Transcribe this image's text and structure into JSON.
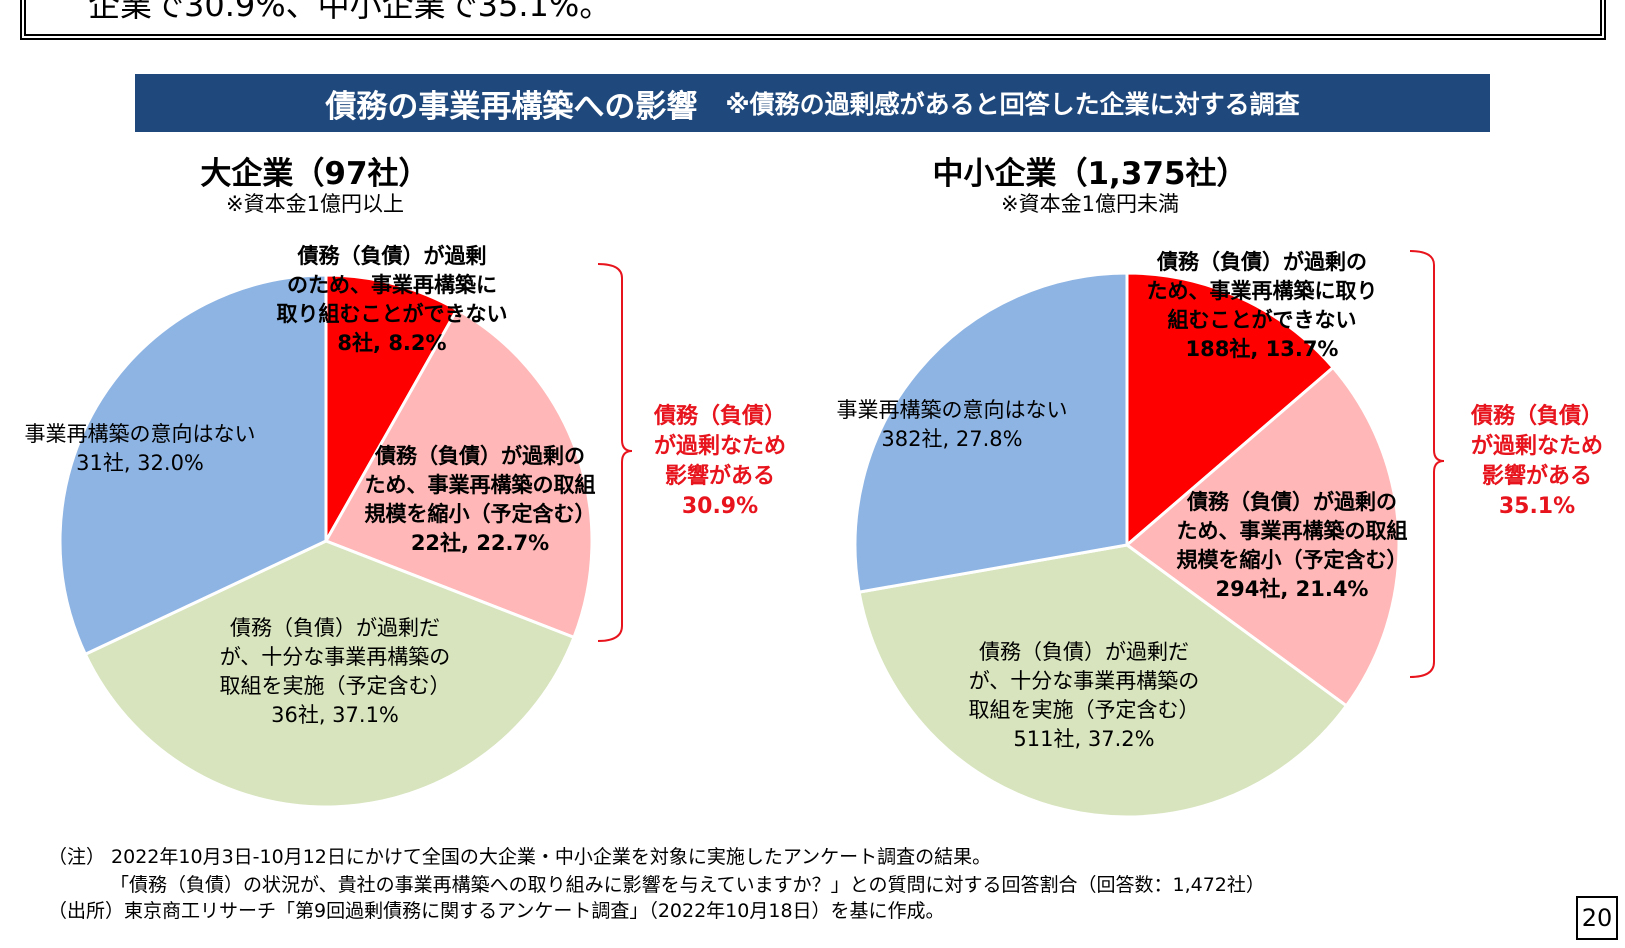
{
  "header": {
    "top_text": "企業で30.9%、中小企業で35.1%。",
    "banner_title": "債務の事業再構築への影響",
    "banner_note": "※債務の過剰感があると回答した企業に対する調査"
  },
  "chart_data": [
    {
      "type": "pie",
      "title": "大企業（97社）",
      "subtitle": "※資本金1億円以上",
      "slices": [
        {
          "label": "債務（負債）が過剰のため、事業再構築に取り組むことができない",
          "count": 8,
          "value": 8.2,
          "color": "#ff0000"
        },
        {
          "label": "債務（負債）が過剰のため、事業再構築の取組規模を縮小（予定含む）",
          "count": 22,
          "value": 22.7,
          "color": "#ffb7b7"
        },
        {
          "label": "債務（負債）が過剰だが、十分な事業再構築の取組を実施（予定含む）",
          "count": 36,
          "value": 37.1,
          "color": "#d7e4bd"
        },
        {
          "label": "事業再構築の意向はない",
          "count": 31,
          "value": 32.0,
          "color": "#8eb4e3"
        }
      ],
      "bracket_label": [
        "債務（負債）",
        "が過剰なため",
        "影響がある",
        "30.9%"
      ]
    },
    {
      "type": "pie",
      "title": "中小企業（1,375社）",
      "subtitle": "※資本金1億円未満",
      "slices": [
        {
          "label": "債務（負債）が過剰のため、事業再構築に取り組むことができない",
          "count": 188,
          "value": 13.7,
          "color": "#ff0000"
        },
        {
          "label": "債務（負債）が過剰のため、事業再構築の取組規模を縮小（予定含む）",
          "count": 294,
          "value": 21.4,
          "color": "#ffb7b7"
        },
        {
          "label": "債務（負債）が過剰だが、十分な事業再構築の取組を実施（予定含む）",
          "count": 511,
          "value": 37.2,
          "color": "#d7e4bd"
        },
        {
          "label": "事業再構築の意向はない",
          "count": 382,
          "value": 27.8,
          "color": "#8eb4e3"
        }
      ],
      "bracket_label": [
        "債務（負債）",
        "が過剰なため",
        "影響がある",
        "35.1%"
      ]
    }
  ],
  "labels": {
    "large": {
      "s0": [
        "債務（負債）が過剰",
        "のため、事業再構築に",
        "取り組むことができない",
        "8社, 8.2%"
      ],
      "s1": [
        "債務（負債）が過剰の",
        "ため、事業再構築の取組",
        "規模を縮小（予定含む）",
        "22社, 22.7%"
      ],
      "s2": [
        "債務（負債）が過剰だ",
        "が、十分な事業再構築の",
        "取組を実施（予定含む）",
        "36社, 37.1%"
      ],
      "s3": [
        "事業再構築の意向はない",
        "31社, 32.0%"
      ]
    },
    "small": {
      "s0": [
        "債務（負債）が過剰の",
        "ため、事業再構築に取り",
        "組むことができない",
        "188社, 13.7%"
      ],
      "s1": [
        "債務（負債）が過剰の",
        "ため、事業再構築の取組",
        "規模を縮小（予定含む）",
        "294社, 21.4%"
      ],
      "s2": [
        "債務（負債）が過剰だ",
        "が、十分な事業再構築の",
        "取組を実施（予定含む）",
        "511社, 37.2%"
      ],
      "s3": [
        "事業再構築の意向はない",
        "382社, 27.8%"
      ]
    }
  },
  "notes": {
    "line1": "（注） 2022年10月3日-10月12日にかけて全国の大企業・中小企業を対象に実施したアンケート調査の結果。",
    "line2": "「債務（負債）の状況が、貴社の事業再構築への取り組みに影響を与えていますか？」との質問に対する回答割合（回答数：1,472社）",
    "line3": "（出所）東京商工リサーチ「第9回過剰債務に関するアンケート調査」（2022年10月18日）を基に作成。"
  },
  "page_number": "20"
}
